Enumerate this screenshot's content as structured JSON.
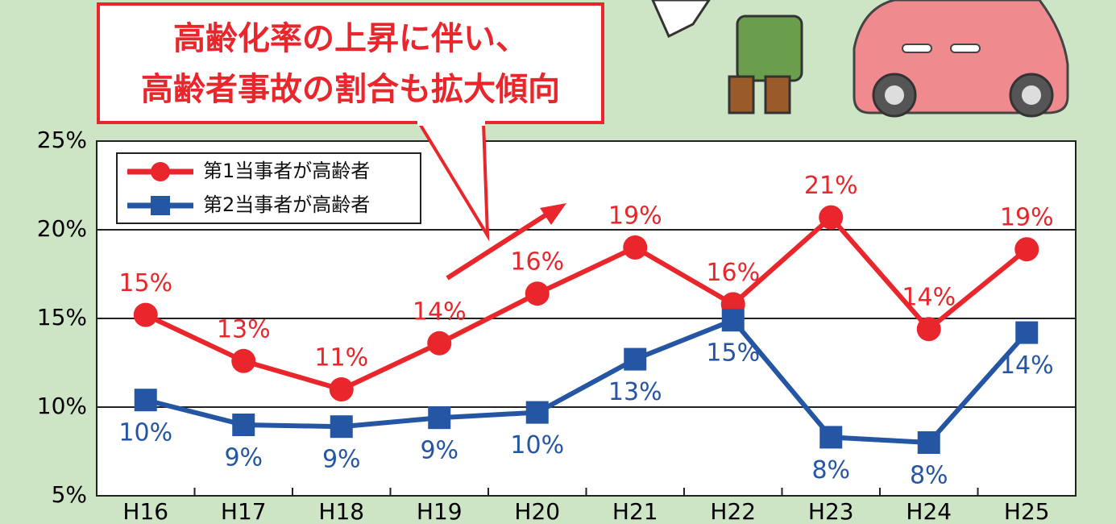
{
  "chart_data": {
    "type": "line",
    "annotations": [
      "高齢化率の上昇に伴い、",
      "高齢者事故の割合も拡大傾向"
    ],
    "categories": [
      "H16",
      "H17",
      "H18",
      "H19",
      "H20",
      "H21",
      "H22",
      "H23",
      "H24",
      "H25"
    ],
    "series": [
      {
        "name": "第1当事者が高齢者",
        "color": "#e8262b",
        "marker": "circle",
        "values": [
          15.2,
          12.6,
          11.0,
          13.6,
          16.4,
          19.0,
          15.8,
          20.7,
          14.4,
          18.9
        ],
        "value_labels": [
          "15%",
          "13%",
          "11%",
          "14%",
          "16%",
          "19%",
          "16%",
          "21%",
          "14%",
          "19%"
        ]
      },
      {
        "name": "第2当事者が高齢者",
        "color": "#2456a4",
        "marker": "square",
        "values": [
          10.4,
          9.0,
          8.9,
          9.4,
          9.7,
          12.7,
          14.9,
          8.3,
          8.0,
          14.2
        ],
        "value_labels": [
          "10%",
          "9%",
          "9%",
          "9%",
          "10%",
          "13%",
          "15%",
          "8%",
          "8%",
          "14%"
        ]
      }
    ],
    "ylim": [
      5,
      25
    ],
    "yticks": [
      {
        "value": 5,
        "label": "5%"
      },
      {
        "value": 10,
        "label": "10%"
      },
      {
        "value": 15,
        "label": "15%"
      },
      {
        "value": 20,
        "label": "20%"
      },
      {
        "value": 25,
        "label": "25%"
      }
    ],
    "grid": true,
    "legend": "upper left"
  }
}
